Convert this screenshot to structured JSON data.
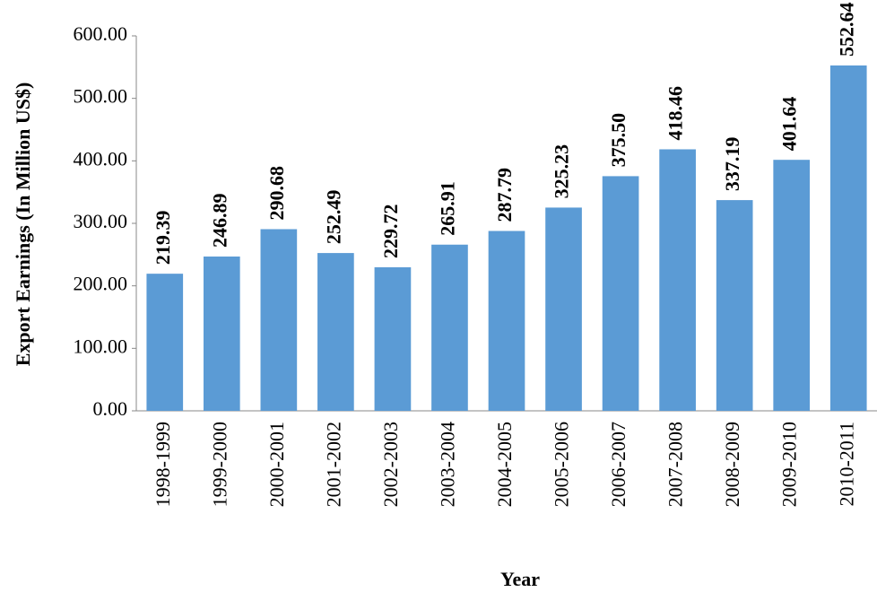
{
  "chart_data": {
    "type": "bar",
    "x_label": "Year",
    "y_label": "Export Earnings (In Million US$)",
    "categories": [
      "1998-1999",
      "1999-2000",
      "2000-2001",
      "2001-2002",
      "2002-2003",
      "2003-2004",
      "2004-2005",
      "2005-2006",
      "2006-2007",
      "2007-2008",
      "2008-2009",
      "2009-2010",
      "2010-2011"
    ],
    "values": [
      219.39,
      246.89,
      290.68,
      252.49,
      229.72,
      265.91,
      287.79,
      325.23,
      375.5,
      418.46,
      337.19,
      401.64,
      552.64
    ],
    "value_labels": [
      "219.39",
      "246.89",
      "290.68",
      "252.49",
      "229.72",
      "265.91",
      "287.79",
      "325.23",
      "375.50",
      "418.46",
      "337.19",
      "401.64",
      "552.64"
    ],
    "color": "#5b9bd5",
    "ylim": [
      0,
      600
    ],
    "yticks": [
      {
        "value": 0,
        "label": "0.00"
      },
      {
        "value": 100,
        "label": "100.00"
      },
      {
        "value": 200,
        "label": "200.00"
      },
      {
        "value": 300,
        "label": "300.00"
      },
      {
        "value": 400,
        "label": "400.00"
      },
      {
        "value": 500,
        "label": "500.00"
      },
      {
        "value": 600,
        "label": "600.00"
      }
    ],
    "grid": false
  }
}
